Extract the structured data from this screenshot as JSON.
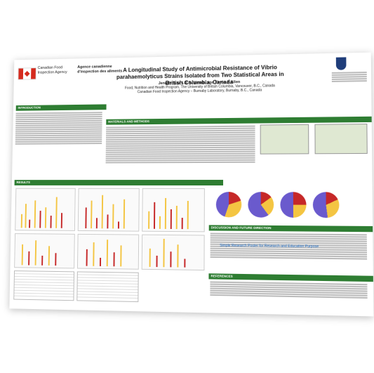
{
  "header": {
    "agency_en": "Canadian Food\nInspection Agency",
    "agency_fr": "Agence canadienne\nd'inspection des aliments",
    "title": "A Longitudinal Study of Antimicrobial Resistance of Vibrio parahaemolyticus Strains Isolated from Two Statistical Areas in British Columbia, Canada",
    "authors": "Jennifer Liu, Lili R. Mesak, and Kevin J. Allen",
    "affil1": "Food, Nutrition and Health Program, The University of British Columbia, Vancouver, B.C., Canada",
    "affil2": "Canadian Food Inspection Agency – Burnaby Laboratory, Burnaby, B.C., Canada",
    "logo": "UBC"
  },
  "sections": {
    "intro": "INTRODUCTION",
    "methods": "MATERIALS AND METHODS",
    "results": "RESULTS",
    "discussion": "DISCUSSION AND FUTURE DIRECTION",
    "references": "REFERENCES"
  },
  "watermark": "Simple Research Poster for Research and Education Purpose"
}
